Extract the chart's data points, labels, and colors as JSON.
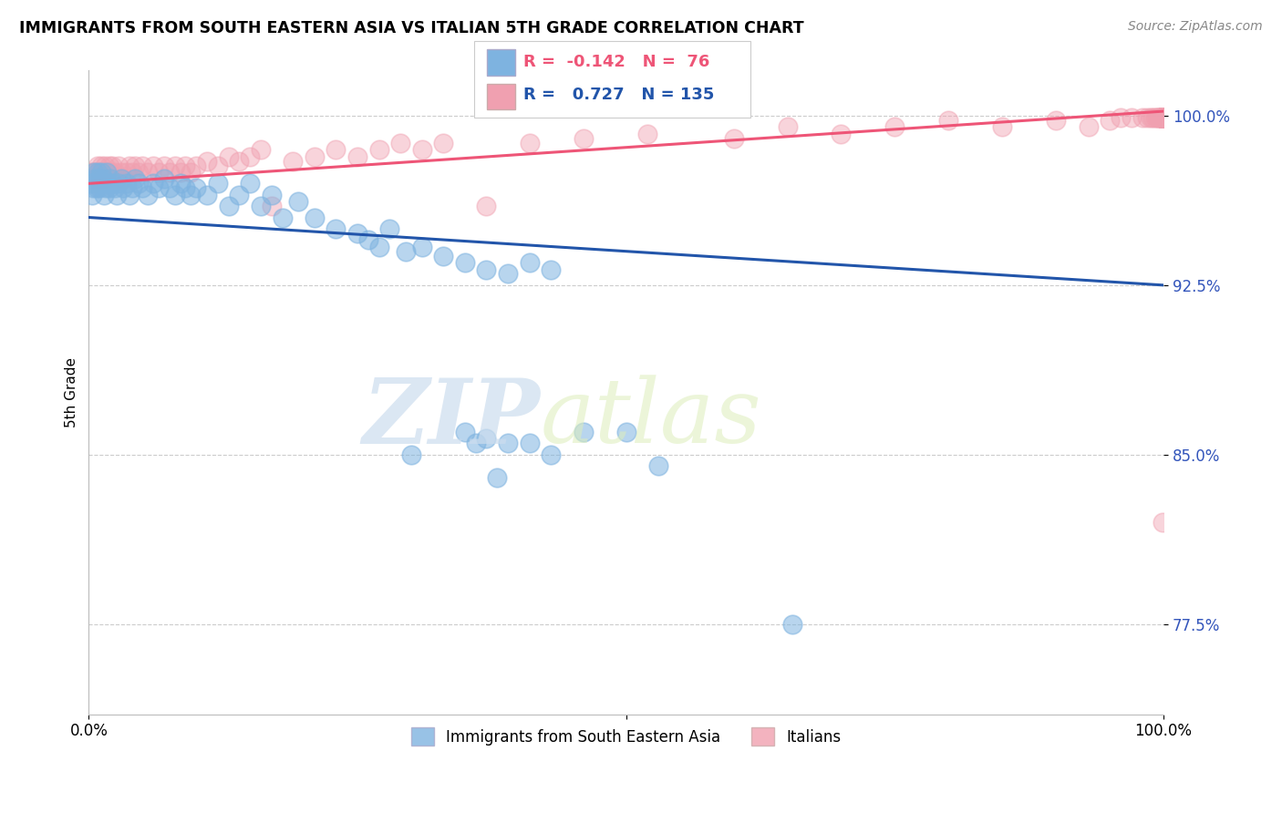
{
  "title": "IMMIGRANTS FROM SOUTH EASTERN ASIA VS ITALIAN 5TH GRADE CORRELATION CHART",
  "source": "Source: ZipAtlas.com",
  "ylabel": "5th Grade",
  "xmin": 0.0,
  "xmax": 1.0,
  "ymin": 0.735,
  "ymax": 1.02,
  "yticks": [
    0.775,
    0.85,
    0.925,
    1.0
  ],
  "ytick_labels": [
    "77.5%",
    "85.0%",
    "92.5%",
    "100.0%"
  ],
  "xtick_labels": [
    "0.0%",
    "100.0%"
  ],
  "blue_R": -0.142,
  "blue_N": 76,
  "pink_R": 0.727,
  "pink_N": 135,
  "blue_color": "#7EB3E0",
  "pink_color": "#F0A0B0",
  "blue_line_color": "#2255AA",
  "pink_line_color": "#EE5577",
  "legend_label_blue": "Immigrants from South Eastern Asia",
  "legend_label_pink": "Italians",
  "watermark_zip": "ZIP",
  "watermark_atlas": "atlas",
  "blue_trend_x": [
    0.0,
    1.0
  ],
  "blue_trend_y": [
    0.955,
    0.925
  ],
  "pink_trend_x": [
    0.0,
    1.0
  ],
  "pink_trend_y": [
    0.97,
    1.002
  ],
  "blue_scatter_x": [
    0.002,
    0.003,
    0.004,
    0.005,
    0.006,
    0.007,
    0.008,
    0.009,
    0.01,
    0.011,
    0.012,
    0.013,
    0.014,
    0.015,
    0.016,
    0.017,
    0.018,
    0.019,
    0.02,
    0.022,
    0.024,
    0.026,
    0.028,
    0.03,
    0.032,
    0.035,
    0.038,
    0.04,
    0.043,
    0.046,
    0.05,
    0.055,
    0.06,
    0.065,
    0.07,
    0.075,
    0.08,
    0.085,
    0.09,
    0.095,
    0.1,
    0.11,
    0.12,
    0.13,
    0.14,
    0.15,
    0.16,
    0.17,
    0.18,
    0.195,
    0.21,
    0.23,
    0.25,
    0.26,
    0.27,
    0.28,
    0.295,
    0.31,
    0.33,
    0.35,
    0.37,
    0.39,
    0.41,
    0.43,
    0.46,
    0.5,
    0.35,
    0.37,
    0.39,
    0.41,
    0.43,
    0.36,
    0.38,
    0.3,
    0.53,
    0.655
  ],
  "blue_scatter_y": [
    0.97,
    0.965,
    0.968,
    0.975,
    0.972,
    0.968,
    0.975,
    0.972,
    0.968,
    0.97,
    0.975,
    0.972,
    0.965,
    0.97,
    0.968,
    0.975,
    0.97,
    0.968,
    0.972,
    0.97,
    0.968,
    0.965,
    0.97,
    0.972,
    0.968,
    0.97,
    0.965,
    0.968,
    0.972,
    0.97,
    0.968,
    0.965,
    0.97,
    0.968,
    0.972,
    0.968,
    0.965,
    0.97,
    0.968,
    0.965,
    0.968,
    0.965,
    0.97,
    0.96,
    0.965,
    0.97,
    0.96,
    0.965,
    0.955,
    0.962,
    0.955,
    0.95,
    0.948,
    0.945,
    0.942,
    0.95,
    0.94,
    0.942,
    0.938,
    0.935,
    0.932,
    0.93,
    0.935,
    0.932,
    0.86,
    0.86,
    0.86,
    0.857,
    0.855,
    0.855,
    0.85,
    0.855,
    0.84,
    0.85,
    0.845,
    0.775
  ],
  "pink_scatter_x": [
    0.002,
    0.003,
    0.004,
    0.005,
    0.006,
    0.007,
    0.008,
    0.009,
    0.01,
    0.011,
    0.012,
    0.013,
    0.014,
    0.015,
    0.016,
    0.017,
    0.018,
    0.019,
    0.02,
    0.022,
    0.024,
    0.026,
    0.028,
    0.03,
    0.032,
    0.035,
    0.038,
    0.04,
    0.043,
    0.046,
    0.05,
    0.055,
    0.06,
    0.065,
    0.07,
    0.075,
    0.08,
    0.085,
    0.09,
    0.095,
    0.1,
    0.11,
    0.12,
    0.13,
    0.14,
    0.15,
    0.16,
    0.17,
    0.19,
    0.21,
    0.23,
    0.25,
    0.27,
    0.29,
    0.31,
    0.33,
    0.37,
    0.41,
    0.46,
    0.52,
    0.6,
    0.65,
    0.7,
    0.75,
    0.8,
    0.85,
    0.9,
    0.93,
    0.95,
    0.96,
    0.97,
    0.98,
    0.985,
    0.988,
    0.99,
    0.992,
    0.994,
    0.995,
    0.996,
    0.997,
    0.998,
    0.998,
    0.998,
    0.999,
    0.999,
    0.999,
    0.999,
    0.999,
    0.999,
    0.999,
    0.999,
    0.999,
    0.999,
    0.999,
    0.999,
    0.999,
    0.999,
    0.999,
    0.999,
    0.999,
    0.999,
    0.999,
    0.999,
    0.999,
    0.999,
    0.999,
    0.999,
    0.999,
    0.999,
    0.999,
    0.999,
    0.999,
    0.999,
    0.999,
    0.999,
    0.999,
    0.999,
    0.999,
    0.999,
    0.999,
    0.999,
    0.999,
    0.999,
    0.999,
    0.999,
    0.999,
    0.999,
    0.999,
    0.999,
    0.999,
    0.999,
    0.999,
    0.999
  ],
  "pink_scatter_y": [
    0.975,
    0.972,
    0.975,
    0.97,
    0.975,
    0.972,
    0.978,
    0.975,
    0.972,
    0.975,
    0.978,
    0.972,
    0.975,
    0.978,
    0.975,
    0.972,
    0.975,
    0.978,
    0.975,
    0.978,
    0.975,
    0.972,
    0.978,
    0.975,
    0.972,
    0.975,
    0.978,
    0.975,
    0.978,
    0.975,
    0.978,
    0.975,
    0.978,
    0.975,
    0.978,
    0.975,
    0.978,
    0.975,
    0.978,
    0.975,
    0.978,
    0.98,
    0.978,
    0.982,
    0.98,
    0.982,
    0.985,
    0.96,
    0.98,
    0.982,
    0.985,
    0.982,
    0.985,
    0.988,
    0.985,
    0.988,
    0.96,
    0.988,
    0.99,
    0.992,
    0.99,
    0.995,
    0.992,
    0.995,
    0.998,
    0.995,
    0.998,
    0.995,
    0.998,
    0.999,
    0.999,
    0.999,
    0.999,
    0.999,
    0.999,
    0.999,
    0.999,
    0.999,
    0.999,
    0.999,
    0.999,
    0.999,
    0.999,
    0.999,
    0.999,
    0.999,
    0.999,
    0.999,
    0.999,
    0.999,
    0.999,
    0.999,
    0.999,
    0.999,
    0.999,
    0.999,
    0.999,
    0.999,
    0.999,
    0.999,
    0.999,
    0.999,
    0.999,
    0.999,
    0.999,
    0.999,
    0.999,
    0.999,
    0.999,
    0.999,
    0.999,
    0.999,
    0.999,
    0.999,
    0.999,
    0.999,
    0.999,
    0.999,
    0.999,
    0.999,
    0.999,
    0.999,
    0.999,
    0.999,
    0.999,
    0.999,
    0.999,
    0.999,
    0.999,
    0.999,
    0.999,
    0.999,
    0.82
  ]
}
